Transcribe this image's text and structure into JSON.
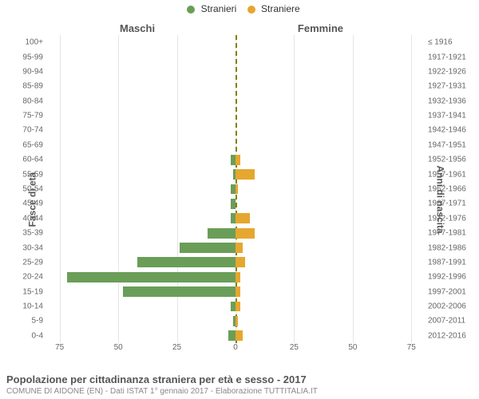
{
  "legend": {
    "male": {
      "label": "Stranieri",
      "color": "#6a9e58"
    },
    "female": {
      "label": "Straniere",
      "color": "#e5a72e"
    }
  },
  "headers": {
    "left": "Maschi",
    "right": "Femmine"
  },
  "axis_titles": {
    "left": "Fasce di età",
    "right": "Anni di nascita"
  },
  "x_ticks": [
    75,
    50,
    25,
    0,
    25,
    50,
    75
  ],
  "x_max": 80,
  "grid_color": "#e5e5e5",
  "center_line_color": "#808000",
  "chart": {
    "type": "population-pyramid",
    "rows": [
      {
        "age": "100+",
        "birth": "≤ 1916",
        "m": 0,
        "f": 0
      },
      {
        "age": "95-99",
        "birth": "1917-1921",
        "m": 0,
        "f": 0
      },
      {
        "age": "90-94",
        "birth": "1922-1926",
        "m": 0,
        "f": 0
      },
      {
        "age": "85-89",
        "birth": "1927-1931",
        "m": 0,
        "f": 0
      },
      {
        "age": "80-84",
        "birth": "1932-1936",
        "m": 0,
        "f": 0
      },
      {
        "age": "75-79",
        "birth": "1937-1941",
        "m": 0,
        "f": 0
      },
      {
        "age": "70-74",
        "birth": "1942-1946",
        "m": 0,
        "f": 0
      },
      {
        "age": "65-69",
        "birth": "1947-1951",
        "m": 0,
        "f": 0
      },
      {
        "age": "60-64",
        "birth": "1952-1956",
        "m": 2,
        "f": 2
      },
      {
        "age": "55-59",
        "birth": "1957-1961",
        "m": 1,
        "f": 8
      },
      {
        "age": "50-54",
        "birth": "1962-1966",
        "m": 2,
        "f": 1
      },
      {
        "age": "45-49",
        "birth": "1967-1971",
        "m": 2,
        "f": 0
      },
      {
        "age": "40-44",
        "birth": "1972-1976",
        "m": 2,
        "f": 6
      },
      {
        "age": "35-39",
        "birth": "1977-1981",
        "m": 12,
        "f": 8
      },
      {
        "age": "30-34",
        "birth": "1982-1986",
        "m": 24,
        "f": 3
      },
      {
        "age": "25-29",
        "birth": "1987-1991",
        "m": 42,
        "f": 4
      },
      {
        "age": "20-24",
        "birth": "1992-1996",
        "m": 72,
        "f": 2
      },
      {
        "age": "15-19",
        "birth": "1997-2001",
        "m": 48,
        "f": 2
      },
      {
        "age": "10-14",
        "birth": "2002-2006",
        "m": 2,
        "f": 2
      },
      {
        "age": "5-9",
        "birth": "2007-2011",
        "m": 1,
        "f": 1
      },
      {
        "age": "0-4",
        "birth": "2012-2016",
        "m": 3,
        "f": 3
      }
    ]
  },
  "footer": {
    "title": "Popolazione per cittadinanza straniera per età e sesso - 2017",
    "subtitle": "COMUNE DI AIDONE (EN) - Dati ISTAT 1° gennaio 2017 - Elaborazione TUTTITALIA.IT"
  }
}
